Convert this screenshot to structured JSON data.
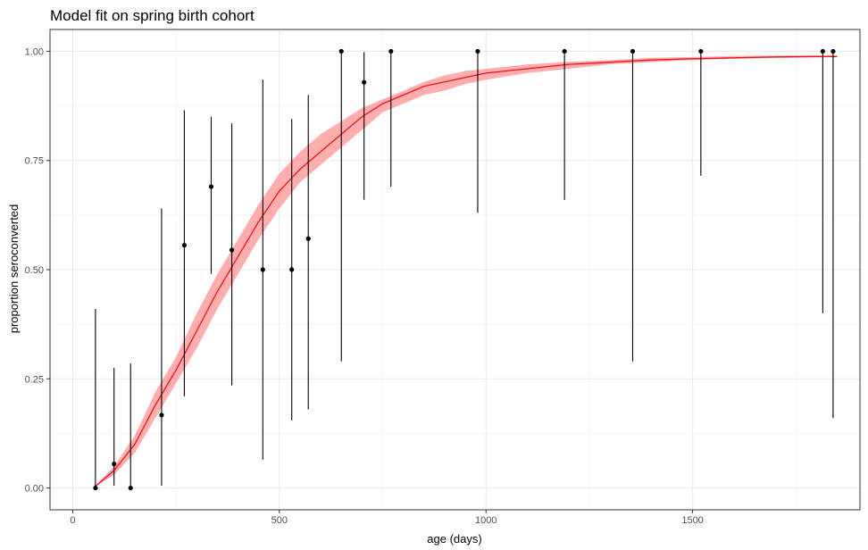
{
  "chart_data": {
    "type": "scatter",
    "title": "Model fit on spring birth cohort",
    "xlabel": "age (days)",
    "ylabel": "proportion seroconverted",
    "xlim": [
      -55,
      1905
    ],
    "ylim": [
      -0.05,
      1.05
    ],
    "x_ticks": [
      0,
      500,
      1000,
      1500
    ],
    "x_tick_labels": [
      "0",
      "500",
      "1000",
      "1500"
    ],
    "y_ticks": [
      0,
      0.25,
      0.5,
      0.75,
      1.0
    ],
    "y_tick_labels": [
      "0.00",
      "0.25",
      "0.50",
      "0.75",
      "1.00"
    ],
    "grid": true,
    "colors": {
      "fit_line": "#e8141b",
      "ribbon": "#ff9999",
      "points": "#000000",
      "grid": "#ebebeb",
      "panel_border": "#333333"
    },
    "fit": {
      "name": "",
      "x": [
        50,
        100,
        150,
        200,
        250,
        300,
        350,
        400,
        450,
        500,
        550,
        600,
        650,
        700,
        750,
        800,
        850,
        900,
        950,
        1000,
        1100,
        1200,
        1300,
        1400,
        1500,
        1600,
        1700,
        1800,
        1850
      ],
      "y": [
        0.0,
        0.04,
        0.1,
        0.19,
        0.27,
        0.36,
        0.45,
        0.53,
        0.61,
        0.68,
        0.73,
        0.77,
        0.81,
        0.85,
        0.88,
        0.9,
        0.92,
        0.93,
        0.94,
        0.95,
        0.96,
        0.97,
        0.975,
        0.98,
        0.983,
        0.985,
        0.987,
        0.988,
        0.988
      ],
      "lower": [
        0.0,
        0.03,
        0.08,
        0.16,
        0.24,
        0.32,
        0.41,
        0.49,
        0.57,
        0.64,
        0.7,
        0.74,
        0.78,
        0.82,
        0.86,
        0.88,
        0.9,
        0.91,
        0.925,
        0.935,
        0.95,
        0.96,
        0.97,
        0.975,
        0.98,
        0.983,
        0.985,
        0.986,
        0.986
      ],
      "upper": [
        0.0,
        0.05,
        0.12,
        0.22,
        0.3,
        0.4,
        0.49,
        0.57,
        0.65,
        0.72,
        0.77,
        0.81,
        0.84,
        0.87,
        0.89,
        0.91,
        0.93,
        0.945,
        0.955,
        0.96,
        0.97,
        0.976,
        0.98,
        0.985,
        0.987,
        0.989,
        0.99,
        0.99,
        0.99
      ]
    },
    "points": [
      {
        "x": 55,
        "y": 0.0,
        "lower": 0.0,
        "upper": 0.41
      },
      {
        "x": 100,
        "y": 0.055,
        "lower": 0.005,
        "upper": 0.275
      },
      {
        "x": 140,
        "y": 0.0,
        "lower": 0.0,
        "upper": 0.285
      },
      {
        "x": 215,
        "y": 0.167,
        "lower": 0.005,
        "upper": 0.64
      },
      {
        "x": 270,
        "y": 0.556,
        "lower": 0.21,
        "upper": 0.865
      },
      {
        "x": 335,
        "y": 0.69,
        "lower": 0.49,
        "upper": 0.85
      },
      {
        "x": 385,
        "y": 0.545,
        "lower": 0.235,
        "upper": 0.835
      },
      {
        "x": 460,
        "y": 0.5,
        "lower": 0.065,
        "upper": 0.935
      },
      {
        "x": 530,
        "y": 0.5,
        "lower": 0.155,
        "upper": 0.845
      },
      {
        "x": 570,
        "y": 0.571,
        "lower": 0.18,
        "upper": 0.9
      },
      {
        "x": 650,
        "y": 1.0,
        "lower": 0.29,
        "upper": 1.0
      },
      {
        "x": 705,
        "y": 0.929,
        "lower": 0.66,
        "upper": 0.998
      },
      {
        "x": 770,
        "y": 1.0,
        "lower": 0.69,
        "upper": 1.0
      },
      {
        "x": 980,
        "y": 1.0,
        "lower": 0.63,
        "upper": 1.0
      },
      {
        "x": 1190,
        "y": 1.0,
        "lower": 0.66,
        "upper": 1.0
      },
      {
        "x": 1355,
        "y": 1.0,
        "lower": 0.29,
        "upper": 1.0
      },
      {
        "x": 1520,
        "y": 1.0,
        "lower": 0.715,
        "upper": 1.0
      },
      {
        "x": 1815,
        "y": 1.0,
        "lower": 0.4,
        "upper": 1.0
      },
      {
        "x": 1840,
        "y": 1.0,
        "lower": 0.16,
        "upper": 1.0
      }
    ]
  }
}
